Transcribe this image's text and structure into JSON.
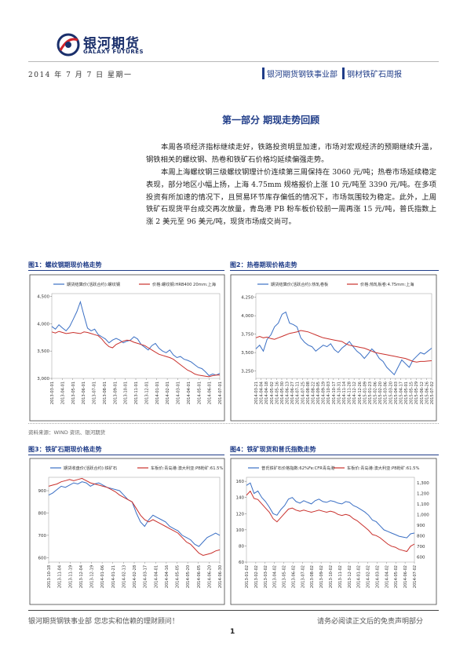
{
  "header": {
    "company_cn": "银河期货",
    "company_en": "GALAXY FUTURES",
    "date": "2014 年 7 月 7 日 星期一",
    "department": "银河期货钢铁事业部",
    "report_name": "钢材铁矿石周报"
  },
  "section": {
    "title": "第一部分 期现走势回顾",
    "paragraphs": [
      "本周各项经济指标继续走好，铁路投资明显加速，市场对宏观经济的预期继续升温，钢铁相关的螺纹钢、热卷和铁矿石价格均延续偏强走势。",
      "本周上海螺纹钢三级螺纹钢理计价连续第三周保持在 3060 元/吨；热卷市场延续稳定表现，部分地区小幅上扬，上海 4.75mm 规格报价上涨 10 元/吨至 3390 元/吨。在多项投资有所加速的情况下，且贸易环节库存偏低的情况下，市场氛围较为稳定。此外，上周铁矿石现货平台成交再次放量，青岛港 PB 粉车板价较前一周再涨 15 元/吨，普氏指数上涨 2 美元至 96 美元/吨，现货市场成交尚可。"
    ]
  },
  "figures": [
    {
      "label": "图1：螺纹钢期现价格走势",
      "chart_data": {
        "type": "line",
        "x_ticks": [
          "2013-03-01",
          "2013-04-01",
          "2013-05-01",
          "2013-06-01",
          "2013-07-01",
          "2013-08-01",
          "2013-09-01",
          "2013-10-01",
          "2013-11-01",
          "2013-12-01",
          "2014-01-01",
          "2014-02-01",
          "2014-03-01",
          "2014-04-01",
          "2014-05-01",
          "2014-06-01",
          "2014-07-01"
        ],
        "y_ticks": [
          "3,000",
          "3,500",
          "4,000",
          "4,500"
        ],
        "ylim": [
          3000,
          4550
        ],
        "series": [
          {
            "name": "期货结算价(活跃合约):螺纹钢",
            "color": "#3a6fc4",
            "values": [
              3950,
              3900,
              3980,
              3920,
              3870,
              3950,
              4080,
              4220,
              4400,
              4150,
              3920,
              3870,
              3900,
              3800,
              3760,
              3720,
              3650,
              3700,
              3730,
              3700,
              3650,
              3680,
              3700,
              3760,
              3720,
              3620,
              3570,
              3520,
              3600,
              3640,
              3550,
              3500,
              3470,
              3520,
              3430,
              3380,
              3400,
              3350,
              3330,
              3300,
              3250,
              3200,
              3180,
              3120,
              3050,
              3080,
              3060,
              3090
            ]
          },
          {
            "name": "价格:螺纹钢:HRB400 20mm:上海",
            "color": "#c9302c",
            "values": [
              3850,
              3830,
              3860,
              3840,
              3820,
              3830,
              3840,
              3830,
              3820,
              3850,
              3840,
              3820,
              3800,
              3780,
              3720,
              3640,
              3580,
              3560,
              3620,
              3650,
              3680,
              3700,
              3690,
              3660,
              3640,
              3620,
              3600,
              3560,
              3520,
              3480,
              3440,
              3420,
              3400,
              3380,
              3350,
              3300,
              3250,
              3200,
              3150,
              3120,
              3080,
              3060,
              3050,
              3040,
              3030,
              3050,
              3060,
              3060
            ]
          }
        ]
      }
    },
    {
      "label": "图2：热卷期现价格走势",
      "chart_data": {
        "type": "line",
        "x_ticks": [
          "2014-03-21",
          "2014-04-04",
          "2014-04-18",
          "2014-05-02",
          "2014-05-16",
          "2014-05-30",
          "2014-06-13",
          "2014-06-27",
          "2014-07-11",
          "2014-07-25",
          "2014-08-08",
          "2014-08-22",
          "2014-09-05",
          "2014-09-19",
          "2014-10-03",
          "2014-10-17",
          "2014-10-31",
          "2014-11-14",
          "2014-11-28",
          "2014-12-12",
          "2014-12-26",
          "2015-01-09",
          "2015-01-23",
          "2015-02-06",
          "2015-02-20",
          "2015-03-06",
          "2015-03-20",
          "2015-04-03",
          "2015-04-17",
          "2015-05-01",
          "2015-05-15",
          "2015-05-29",
          "2015-06-12",
          "2015-06-26",
          "2015-07-02"
        ],
        "y_ticks": [
          "3,250",
          "3,500",
          "3,750",
          "4,000",
          "4,250"
        ],
        "ylim": [
          3150,
          4300
        ],
        "series": [
          {
            "name": "期货结算价(活跃合约):热轧卷板",
            "color": "#3a6fc4",
            "values": [
              3550,
              3600,
              3520,
              3680,
              3740,
              3850,
              3900,
              4020,
              4050,
              3900,
              3880,
              3850,
              3700,
              3640,
              3600,
              3580,
              3520,
              3560,
              3600,
              3580,
              3620,
              3540,
              3500,
              3560,
              3600,
              3650,
              3580,
              3520,
              3480,
              3420,
              3480,
              3550,
              3500,
              3420,
              3380,
              3300,
              3250,
              3200,
              3300,
              3400,
              3350,
              3300,
              3400,
              3450,
              3500,
              3480,
              3520,
              3560
            ]
          },
          {
            "name": "价格:热轧板卷:4.75mm:上海",
            "color": "#c9302c",
            "values": [
              3700,
              3720,
              3700,
              3710,
              3690,
              3680,
              3700,
              3720,
              3740,
              3760,
              3770,
              3780,
              3800,
              3790,
              3780,
              3760,
              3740,
              3720,
              3700,
              3690,
              3680,
              3670,
              3660,
              3650,
              3620,
              3600,
              3590,
              3580,
              3570,
              3560,
              3540,
              3520,
              3500,
              3490,
              3480,
              3470,
              3460,
              3450,
              3440,
              3430,
              3420,
              3400,
              3380,
              3370,
              3380,
              3380,
              3385,
              3390
            ]
          }
        ]
      }
    },
    {
      "label": "图3：铁矿石期现价格走势",
      "chart_data": {
        "type": "line",
        "x_ticks": [
          "2013-10-18",
          "2013-11-04",
          "2013-11-19",
          "2013-12-04",
          "2013-12-19",
          "2014-01-06",
          "2014-01-21",
          "2014-02-13",
          "2014-02-28",
          "2014-03-17",
          "2014-04-01",
          "2014-04-16",
          "2014-05-05",
          "2014-05-20",
          "2014-06-05",
          "2014-06-20",
          "2014-06-30"
        ],
        "y_ticks": [
          "600",
          "700",
          "800",
          "900"
        ],
        "ylim": [
          580,
          960
        ],
        "series": [
          {
            "name": "期货收盘价(活跃合约):铁矿石",
            "color": "#3a6fc4",
            "values": [
              880,
              890,
              905,
              920,
              915,
              925,
              935,
              930,
              940,
              935,
              920,
              930,
              935,
              925,
              915,
              910,
              905,
              900,
              880,
              860,
              850,
              800,
              760,
              740,
              770,
              790,
              780,
              770,
              760,
              740,
              730,
              720,
              700,
              690,
              680,
              660,
              650,
              670,
              690,
              700,
              710,
              700
            ]
          },
          {
            "name": "车板价:青岛港:澳大利亚:PB粉矿:61.5%",
            "color": "#c9302c",
            "values": [
              920,
              925,
              930,
              940,
              945,
              950,
              945,
              950,
              955,
              945,
              935,
              930,
              925,
              920,
              915,
              905,
              895,
              880,
              870,
              860,
              850,
              820,
              790,
              770,
              760,
              770,
              760,
              750,
              740,
              730,
              720,
              710,
              690,
              670,
              660,
              640,
              620,
              610,
              615,
              620,
              630,
              635
            ]
          }
        ]
      }
    },
    {
      "label": "图4：铁矿现货和普氏指数走势",
      "chart_data": {
        "type": "line",
        "x_ticks": [
          "2013-01-02",
          "2013-02-02",
          "2013-03-02",
          "2013-04-02",
          "2013-05-02",
          "2013-06-02",
          "2013-07-02",
          "2013-08-02",
          "2013-09-02",
          "2013-10-02",
          "2013-11-02",
          "2013-12-02",
          "2014-01-02",
          "2014-02-02",
          "2014-03-02",
          "2014-04-02",
          "2014-05-02",
          "2014-06-02",
          "2014-07-02"
        ],
        "y_ticks": [
          "60",
          "80",
          "100",
          "120",
          "140",
          "160"
        ],
        "y2_ticks": [
          "600",
          "700",
          "800",
          "900",
          "1,000",
          "1,100",
          "1,200",
          "1,300"
        ],
        "ylim": [
          60,
          165
        ],
        "series": [
          {
            "name": "普氏铁矿石价格指数:62%Fe:CFR青岛港",
            "color": "#3a6fc4",
            "values": [
              155,
              158,
              145,
              148,
              140,
              135,
              128,
              120,
              118,
              125,
              130,
              138,
              140,
              135,
              133,
              136,
              134,
              132,
              136,
              138,
              135,
              134,
              136,
              135,
              133,
              132,
              135,
              134,
              130,
              128,
              125,
              122,
              118,
              112,
              110,
              105,
              100,
              98,
              96,
              94,
              92,
              91,
              90,
              95,
              96
            ]
          },
          {
            "name": "车板价:青岛港:澳大利亚:PB粉矿:61.5%",
            "color": "#c9302c",
            "values": [
              1180,
              1220,
              1150,
              1140,
              1100,
              1060,
              1020,
              960,
              930,
              970,
              1010,
              1050,
              1060,
              1040,
              1030,
              1040,
              1030,
              1020,
              1030,
              1040,
              1030,
              1020,
              1030,
              1020,
              1000,
              990,
              1000,
              990,
              960,
              940,
              910,
              880,
              850,
              810,
              800,
              780,
              750,
              720,
              700,
              690,
              670,
              660,
              650,
              700,
              720
            ]
          }
        ]
      }
    }
  ],
  "source_note": "资料来源：WIND 资讯、银河期货",
  "footer": {
    "left": "银河期货钢铁事业部  您忠实和信赖的理财顾问！",
    "right": "请务必阅读正文后的免责声明部分",
    "page": "1"
  }
}
